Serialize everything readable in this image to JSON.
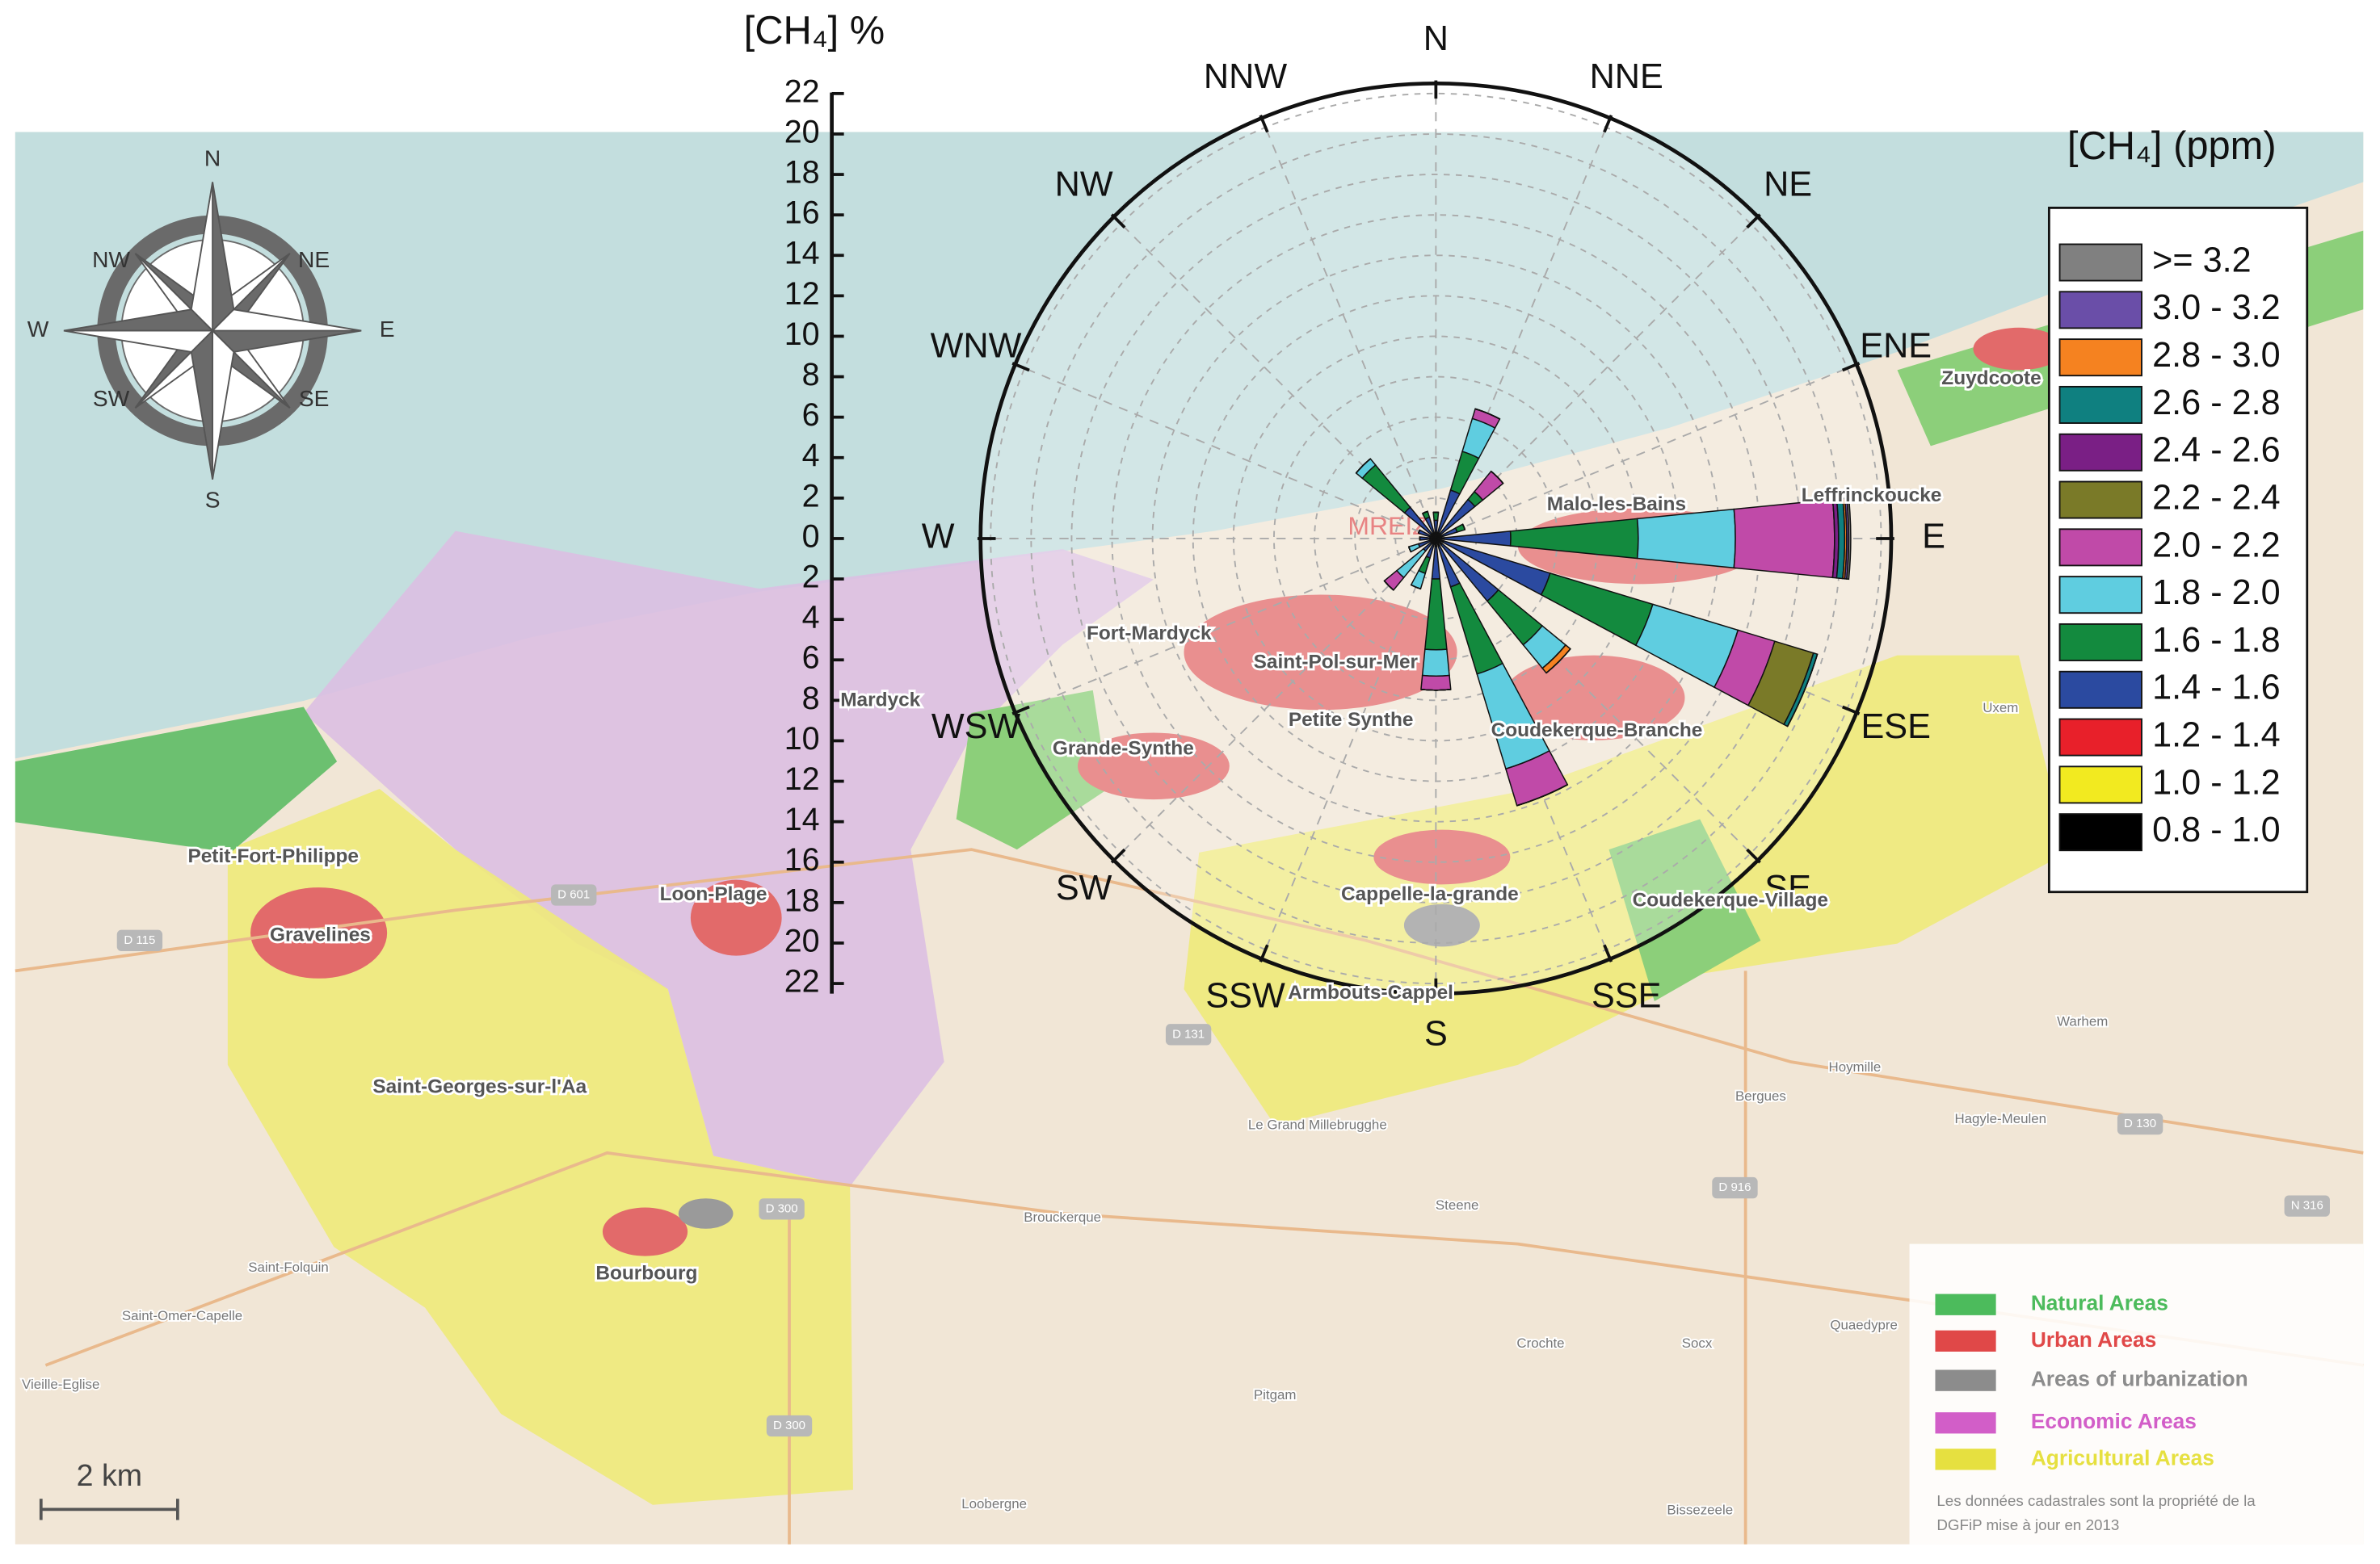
{
  "chart_data": {
    "type": "windrose",
    "radial_axis_label": "[CH₄] %",
    "legend_title": "[CH₄] (ppm)",
    "categories": [
      "N",
      "NNE",
      "NE",
      "ENE",
      "E",
      "ESE",
      "SE",
      "SSE",
      "S",
      "SSW",
      "SW",
      "WSW",
      "W",
      "WNW",
      "NW",
      "NNW"
    ],
    "rlim": [
      0,
      22.5
    ],
    "rticks": [
      0,
      2,
      4,
      6,
      8,
      10,
      12,
      14,
      16,
      18,
      20,
      22
    ],
    "grid": true,
    "series": [
      {
        "name": "0.8 - 1.0",
        "color": "#000000",
        "values": [
          0.3,
          0.3,
          0.3,
          0.3,
          0.4,
          0.4,
          0.4,
          0.4,
          0.4,
          0.3,
          0.3,
          0.3,
          0.3,
          0.3,
          0.3,
          0.3
        ]
      },
      {
        "name": "1.0 - 1.2",
        "color": "#f2ea20",
        "values": [
          0,
          0,
          0,
          0,
          0,
          0,
          0,
          0,
          0,
          0,
          0,
          0,
          0,
          0,
          0,
          0
        ]
      },
      {
        "name": "1.2 - 1.4",
        "color": "#e8202a",
        "values": [
          0,
          0,
          0,
          0,
          0,
          0,
          0,
          0,
          0,
          0,
          0,
          0,
          0,
          0,
          0,
          0
        ]
      },
      {
        "name": "1.4 - 1.6",
        "color": "#2b4aa0",
        "values": [
          0.6,
          2.2,
          2.2,
          0.8,
          3.3,
          5.5,
          3.6,
          2.1,
          1.6,
          0.7,
          0.5,
          0.6,
          0.5,
          0.6,
          1.7,
          0.8
        ]
      },
      {
        "name": "1.6 - 1.8",
        "color": "#138a3e",
        "values": [
          0.4,
          2.0,
          0.5,
          0.4,
          6.3,
          5.3,
          2.8,
          4.5,
          3.5,
          0.8,
          0,
          0,
          0,
          0,
          2.7,
          0.3
        ]
      },
      {
        "name": "1.8 - 2.0",
        "color": "#5fcde0",
        "values": [
          0,
          1.7,
          0,
          0,
          4.8,
          4.4,
          1.5,
          4.9,
          1.3,
          0.8,
          1.7,
          0.5,
          0,
          0,
          0.4,
          0
        ]
      },
      {
        "name": "2.0 - 2.2",
        "color": "#c04aa8",
        "values": [
          0,
          0.5,
          1.3,
          0,
          4.9,
          1.9,
          0,
          1.9,
          0.7,
          0,
          0.8,
          0,
          0,
          0,
          0,
          0
        ]
      },
      {
        "name": "2.2 - 2.4",
        "color": "#7a7a28",
        "values": [
          0,
          0,
          0,
          0,
          0,
          2.0,
          0,
          0,
          0,
          0,
          0,
          0,
          0,
          0,
          0,
          0
        ]
      },
      {
        "name": "2.4 - 2.6",
        "color": "#7a1f85",
        "values": [
          0,
          0,
          0,
          0,
          0.2,
          0,
          0,
          0,
          0,
          0,
          0,
          0,
          0,
          0,
          0,
          0
        ]
      },
      {
        "name": "2.6 - 2.8",
        "color": "#0f8080",
        "values": [
          0,
          0,
          0,
          0,
          0.3,
          0.2,
          0,
          0,
          0,
          0,
          0,
          0,
          0,
          0,
          0,
          0
        ]
      },
      {
        "name": "2.8 - 3.0",
        "color": "#f58220",
        "values": [
          0,
          0,
          0,
          0,
          0.1,
          0,
          0.3,
          0,
          0,
          0,
          0,
          0,
          0,
          0,
          0,
          0
        ]
      },
      {
        "name": "3.0 - 3.2",
        "color": "#6a4ea8",
        "values": [
          0,
          0,
          0,
          0,
          0.1,
          0,
          0,
          0,
          0,
          0,
          0,
          0,
          0,
          0,
          0,
          0
        ]
      },
      {
        "name": ">= 3.2",
        "color": "#808080",
        "values": [
          0,
          0,
          0,
          0,
          0.1,
          0,
          0,
          0,
          0,
          0,
          0,
          0,
          0,
          0,
          0,
          0
        ]
      }
    ]
  },
  "map": {
    "station": "MREIZ",
    "places": [
      "Zuydcoote",
      "Malo-les-Bains",
      "Leffrinckoucke",
      "Fort-Mardyck",
      "Saint-Pol-sur-Mer",
      "Mardyck",
      "Petite Synthe",
      "Coudekerque-Branche",
      "Grande-Synthe",
      "Petit-Fort-Philippe",
      "Gravelines",
      "Loon-Plage",
      "Cappelle-la-grande",
      "Coudekerque-Village",
      "Armbouts-Cappel",
      "Saint-Georges-sur-l'Aa",
      "Bourbourg"
    ],
    "villages": [
      "Uxem",
      "Warhem",
      "Hoymille",
      "Bergues",
      "Hagyle-Meulen",
      "Steene",
      "Crochte",
      "Socx",
      "Pitgam",
      "Brouckerque",
      "Le Grand Millebrugghe",
      "Saint-Folquin",
      "Saint-Omer-Capelle",
      "Vieille-Eglise",
      "Loobergne",
      "Bissezeele",
      "Quaedypre"
    ],
    "roads": [
      "D 115",
      "D 601",
      "D 131",
      "D 916",
      "D 300",
      "D 130",
      "N 316",
      "D 300"
    ],
    "compass": [
      "N",
      "NE",
      "E",
      "SE",
      "S",
      "SW",
      "W",
      "NW"
    ],
    "scale": "2 km",
    "legend": [
      {
        "label": "Natural Areas",
        "color": "#4cbb5c"
      },
      {
        "label": "Urban Areas",
        "color": "#e04848"
      },
      {
        "label": "Areas of urbanization",
        "color": "#8c8c8c"
      },
      {
        "label": "Economic Areas",
        "color": "#d25ec8"
      },
      {
        "label": "Agricultural Areas",
        "color": "#e6e040"
      }
    ],
    "attribution": [
      "Les données cadastrales sont la propriété de la",
      "DGFiP mise à jour en 2013"
    ]
  }
}
